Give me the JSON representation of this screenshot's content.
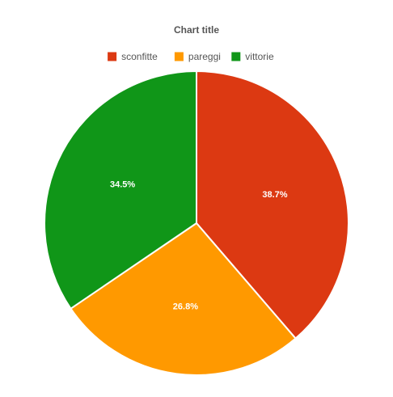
{
  "chart_data": {
    "type": "pie",
    "title": "Chart title",
    "legend_position": "top",
    "series": [
      {
        "name": "sconfitte",
        "value": 38.7,
        "label": "38.7%",
        "color": "#dc3912"
      },
      {
        "name": "pareggi",
        "value": 26.8,
        "label": "26.8%",
        "color": "#ff9900"
      },
      {
        "name": "vittorie",
        "value": 34.5,
        "label": "34.5%",
        "color": "#109618"
      }
    ]
  }
}
